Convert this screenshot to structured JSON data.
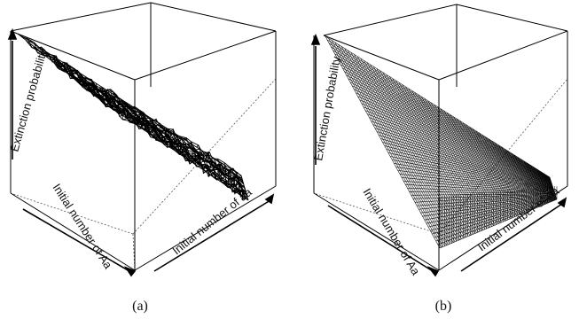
{
  "panels": [
    {
      "caption": "(a)",
      "z_label": "Extinction probability",
      "x_label": "Initial number of Aa",
      "y_label": "Initial number of aa",
      "surface": "noisy simulated estimate"
    },
    {
      "caption": "(b)",
      "z_label": "Extinction probability",
      "x_label": "Initial number of Aa",
      "y_label": "Initial number of aa",
      "surface": "smooth theoretical"
    }
  ],
  "colors": {
    "line": "#000000",
    "background": "#ffffff"
  }
}
